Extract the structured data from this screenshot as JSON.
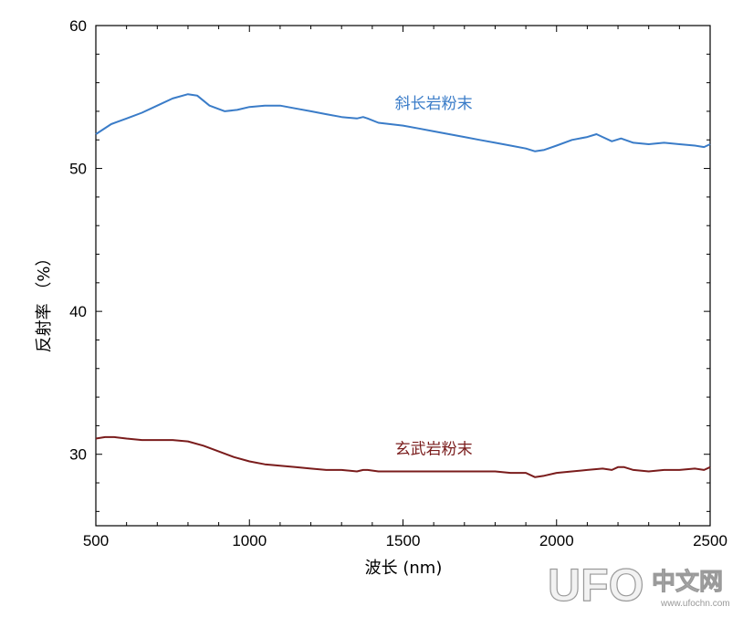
{
  "chart_data": {
    "type": "line",
    "xlabel": "波长 (nm)",
    "ylabel": "反射率 （%）",
    "xlim": [
      500,
      2500
    ],
    "ylim": [
      25,
      60
    ],
    "xticks": [
      500,
      1000,
      1500,
      2000,
      2500
    ],
    "yticks": [
      30,
      40,
      50,
      60
    ],
    "grid": false,
    "series": [
      {
        "name": "斜长岩粉末",
        "color": "#3a7cc8",
        "x": [
          500,
          550,
          600,
          650,
          700,
          750,
          800,
          830,
          870,
          920,
          960,
          1000,
          1050,
          1100,
          1150,
          1200,
          1250,
          1300,
          1350,
          1370,
          1385,
          1420,
          1500,
          1550,
          1600,
          1650,
          1700,
          1750,
          1800,
          1850,
          1900,
          1930,
          1960,
          2000,
          2050,
          2100,
          2130,
          2150,
          2180,
          2210,
          2250,
          2300,
          2350,
          2400,
          2450,
          2480,
          2500
        ],
        "y": [
          52.4,
          53.1,
          53.5,
          53.9,
          54.4,
          54.9,
          55.2,
          55.1,
          54.4,
          54.0,
          54.1,
          54.3,
          54.4,
          54.4,
          54.2,
          54.0,
          53.8,
          53.6,
          53.5,
          53.6,
          53.5,
          53.2,
          53.0,
          52.8,
          52.6,
          52.4,
          52.2,
          52.0,
          51.8,
          51.6,
          51.4,
          51.2,
          51.3,
          51.6,
          52.0,
          52.2,
          52.4,
          52.2,
          51.9,
          52.1,
          51.8,
          51.7,
          51.8,
          51.7,
          51.6,
          51.5,
          51.7
        ],
        "label": "斜长岩粉末"
      },
      {
        "name": "玄武岩粉末",
        "color": "#7a1c1c",
        "x": [
          500,
          530,
          560,
          600,
          650,
          700,
          750,
          800,
          850,
          900,
          950,
          1000,
          1050,
          1100,
          1150,
          1200,
          1250,
          1300,
          1350,
          1370,
          1385,
          1420,
          1500,
          1600,
          1700,
          1800,
          1850,
          1900,
          1930,
          1960,
          2000,
          2050,
          2100,
          2150,
          2180,
          2200,
          2220,
          2250,
          2300,
          2350,
          2400,
          2450,
          2480,
          2500
        ],
        "y": [
          31.1,
          31.2,
          31.2,
          31.1,
          31.0,
          31.0,
          31.0,
          30.9,
          30.6,
          30.2,
          29.8,
          29.5,
          29.3,
          29.2,
          29.1,
          29.0,
          28.9,
          28.9,
          28.8,
          28.9,
          28.9,
          28.8,
          28.8,
          28.8,
          28.8,
          28.8,
          28.7,
          28.7,
          28.4,
          28.5,
          28.7,
          28.8,
          28.9,
          29.0,
          28.9,
          29.1,
          29.1,
          28.9,
          28.8,
          28.9,
          28.9,
          29.0,
          28.9,
          29.1
        ],
        "label": "玄武岩粉末"
      }
    ]
  },
  "watermark": {
    "logo_text": "UFO",
    "name_text": "中文网",
    "url_text": "www.ufochn.com"
  }
}
